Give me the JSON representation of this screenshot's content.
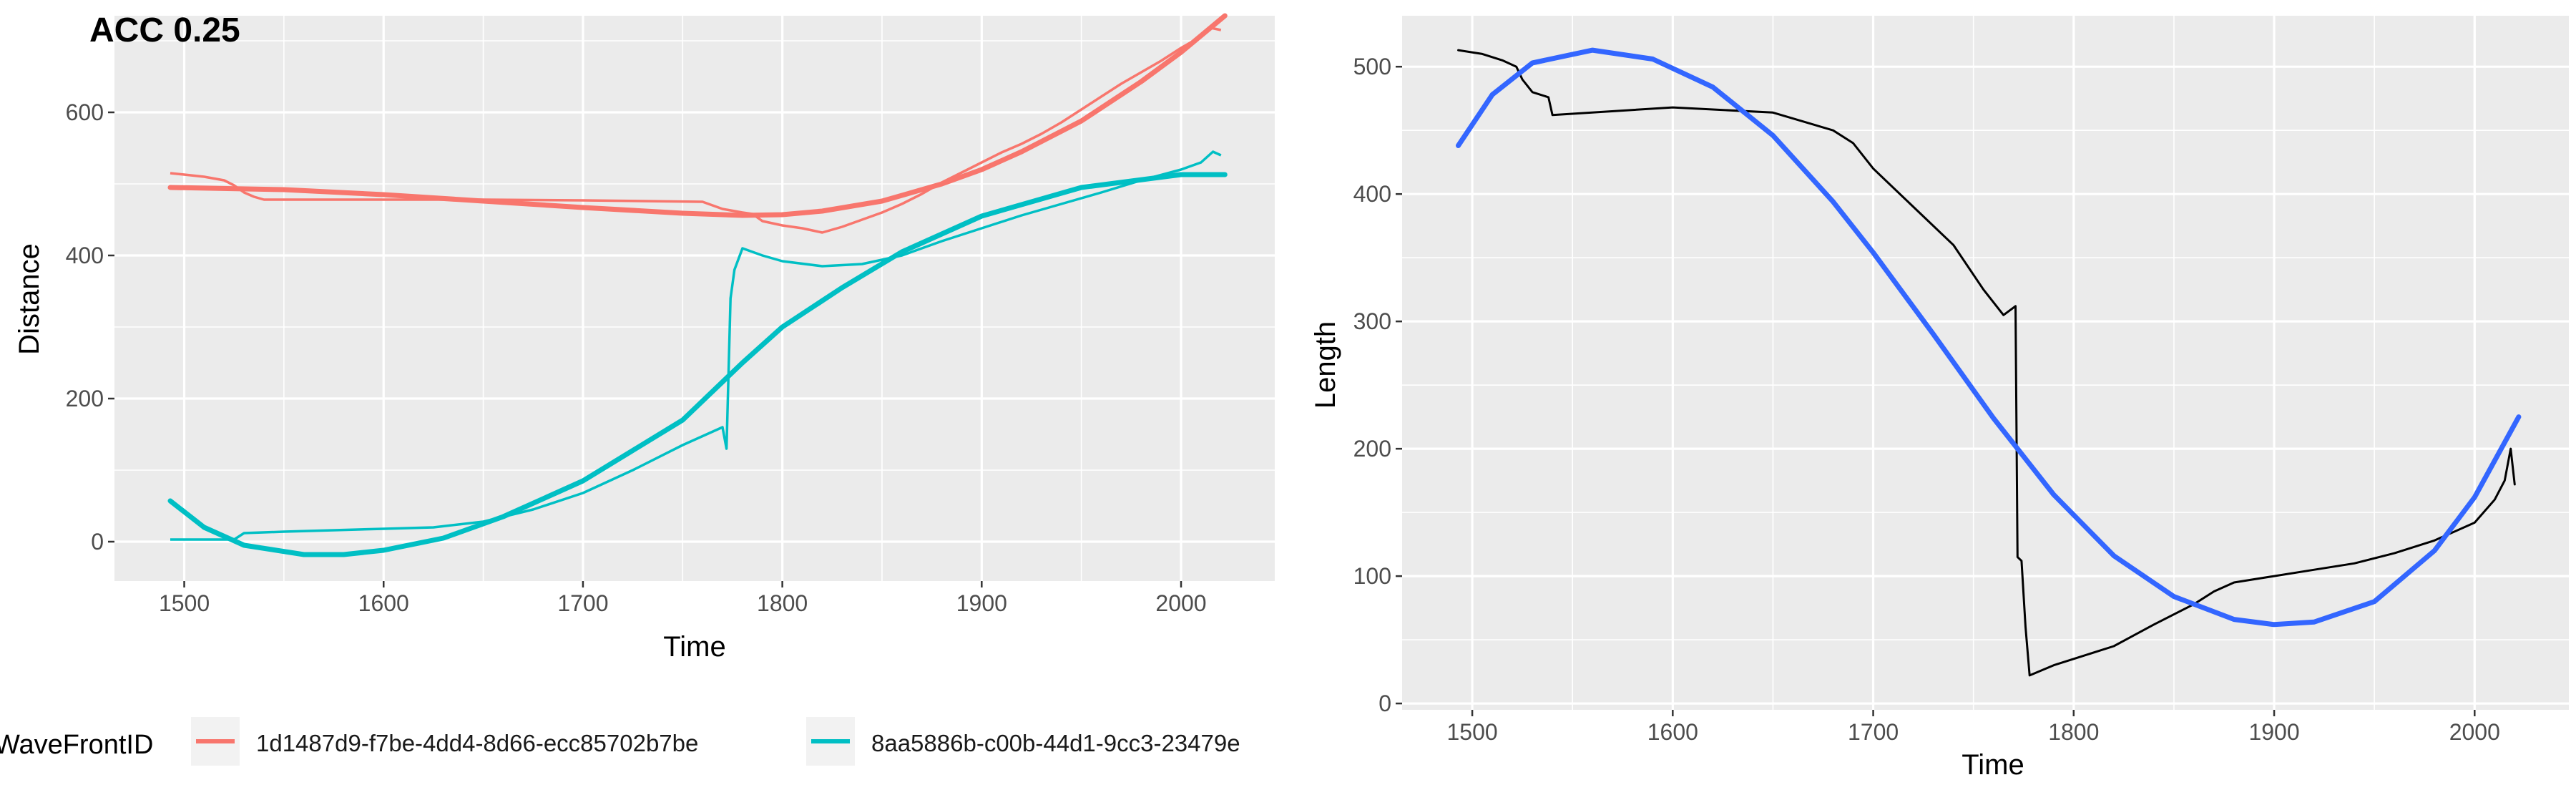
{
  "chart_data": [
    {
      "type": "line",
      "title": "ACC 0.25",
      "xlabel": "Time",
      "ylabel": "Distance",
      "xlim": [
        1465,
        2047
      ],
      "ylim": [
        -55,
        735
      ],
      "xticks": [
        1500,
        1600,
        1700,
        1800,
        1900,
        2000
      ],
      "yticks": [
        0,
        200,
        400,
        600
      ],
      "grid": true,
      "legend": {
        "title": "WaveFrontID",
        "position": "bottom",
        "entries": [
          {
            "label": "1d1487d9-f7be-4dd4-8d66-ecc85702b7be",
            "color": "#F8766D"
          },
          {
            "label": "8aa5886b-c00b-44d1-9cc3-23479e",
            "color": "#00BFC4"
          }
        ]
      },
      "series": [
        {
          "name": "1d1487d9-f7be-4dd4-8d66-ecc85702b7be",
          "color": "#F8766D",
          "points": [
            [
              1493,
              515
            ],
            [
              1500,
              513
            ],
            [
              1510,
              510
            ],
            [
              1520,
              505
            ],
            [
              1525,
              498
            ],
            [
              1530,
              488
            ],
            [
              1535,
              482
            ],
            [
              1540,
              478
            ],
            [
              1600,
              478
            ],
            [
              1650,
              478
            ],
            [
              1700,
              477
            ],
            [
              1760,
              475
            ],
            [
              1770,
              465
            ],
            [
              1780,
              460
            ],
            [
              1785,
              458
            ],
            [
              1790,
              448
            ],
            [
              1800,
              442
            ],
            [
              1810,
              438
            ],
            [
              1820,
              432
            ],
            [
              1830,
              440
            ],
            [
              1840,
              450
            ],
            [
              1850,
              460
            ],
            [
              1860,
              472
            ],
            [
              1870,
              486
            ],
            [
              1880,
              502
            ],
            [
              1890,
              516
            ],
            [
              1900,
              530
            ],
            [
              1910,
              544
            ],
            [
              1920,
              556
            ],
            [
              1930,
              570
            ],
            [
              1940,
              586
            ],
            [
              1950,
              604
            ],
            [
              1960,
              622
            ],
            [
              1970,
              640
            ],
            [
              1980,
              656
            ],
            [
              1990,
              672
            ],
            [
              2000,
              690
            ],
            [
              2010,
              706
            ],
            [
              2015,
              718
            ],
            [
              2020,
              715
            ]
          ],
          "smooth": [
            [
              1493,
              495
            ],
            [
              1550,
              492
            ],
            [
              1600,
              485
            ],
            [
              1650,
              476
            ],
            [
              1700,
              467
            ],
            [
              1750,
              459
            ],
            [
              1780,
              456
            ],
            [
              1800,
              457
            ],
            [
              1820,
              462
            ],
            [
              1850,
              476
            ],
            [
              1880,
              500
            ],
            [
              1900,
              520
            ],
            [
              1920,
              545
            ],
            [
              1950,
              588
            ],
            [
              1980,
              643
            ],
            [
              2000,
              684
            ],
            [
              2022,
              735
            ]
          ]
        },
        {
          "name": "8aa5886b-c00b-44d1-9cc3-23479e",
          "color": "#00BFC4",
          "points": [
            [
              1493,
              3
            ],
            [
              1525,
              3
            ],
            [
              1530,
              12
            ],
            [
              1550,
              14
            ],
            [
              1575,
              16
            ],
            [
              1600,
              18
            ],
            [
              1625,
              20
            ],
            [
              1650,
              28
            ],
            [
              1675,
              45
            ],
            [
              1700,
              68
            ],
            [
              1725,
              100
            ],
            [
              1750,
              135
            ],
            [
              1770,
              160
            ],
            [
              1772,
              130
            ],
            [
              1774,
              340
            ],
            [
              1776,
              380
            ],
            [
              1780,
              410
            ],
            [
              1790,
              400
            ],
            [
              1800,
              392
            ],
            [
              1820,
              385
            ],
            [
              1840,
              388
            ],
            [
              1860,
              400
            ],
            [
              1880,
              420
            ],
            [
              1900,
              438
            ],
            [
              1920,
              456
            ],
            [
              1940,
              472
            ],
            [
              1960,
              488
            ],
            [
              1980,
              505
            ],
            [
              2000,
              520
            ],
            [
              2010,
              530
            ],
            [
              2016,
              545
            ],
            [
              2020,
              540
            ]
          ],
          "smooth": [
            [
              1493,
              57
            ],
            [
              1510,
              20
            ],
            [
              1530,
              -5
            ],
            [
              1560,
              -18
            ],
            [
              1580,
              -18
            ],
            [
              1600,
              -12
            ],
            [
              1630,
              5
            ],
            [
              1660,
              35
            ],
            [
              1700,
              85
            ],
            [
              1750,
              170
            ],
            [
              1780,
              250
            ],
            [
              1800,
              300
            ],
            [
              1830,
              355
            ],
            [
              1860,
              405
            ],
            [
              1900,
              455
            ],
            [
              1950,
              495
            ],
            [
              2000,
              513
            ],
            [
              2022,
              513
            ]
          ]
        }
      ]
    },
    {
      "type": "line",
      "title": "",
      "xlabel": "Time",
      "ylabel": "Length",
      "xlim": [
        1465,
        2047
      ],
      "ylim": [
        -5,
        540
      ],
      "xticks": [
        1500,
        1600,
        1700,
        1800,
        1900,
        2000
      ],
      "yticks": [
        0,
        100,
        200,
        300,
        400,
        500
      ],
      "grid": true,
      "series": [
        {
          "color": "#000000",
          "points": [
            [
              1493,
              513
            ],
            [
              1505,
              510
            ],
            [
              1515,
              505
            ],
            [
              1522,
              500
            ],
            [
              1525,
              490
            ],
            [
              1530,
              480
            ],
            [
              1538,
              476
            ],
            [
              1540,
              462
            ],
            [
              1600,
              468
            ],
            [
              1650,
              464
            ],
            [
              1680,
              450
            ],
            [
              1690,
              440
            ],
            [
              1700,
              420
            ],
            [
              1720,
              390
            ],
            [
              1740,
              360
            ],
            [
              1755,
              325
            ],
            [
              1765,
              305
            ],
            [
              1771,
              312
            ],
            [
              1772,
              115
            ],
            [
              1774,
              112
            ],
            [
              1776,
              60
            ],
            [
              1778,
              22
            ],
            [
              1790,
              30
            ],
            [
              1800,
              35
            ],
            [
              1820,
              45
            ],
            [
              1840,
              62
            ],
            [
              1860,
              78
            ],
            [
              1870,
              88
            ],
            [
              1880,
              95
            ],
            [
              1900,
              100
            ],
            [
              1920,
              105
            ],
            [
              1940,
              110
            ],
            [
              1960,
              118
            ],
            [
              1980,
              128
            ],
            [
              2000,
              142
            ],
            [
              2010,
              160
            ],
            [
              2015,
              175
            ],
            [
              2018,
              200
            ],
            [
              2020,
              172
            ]
          ]
        },
        {
          "color": "#3366FF",
          "points": [
            [
              1493,
              438
            ],
            [
              1510,
              478
            ],
            [
              1530,
              503
            ],
            [
              1560,
              513
            ],
            [
              1590,
              506
            ],
            [
              1620,
              484
            ],
            [
              1650,
              446
            ],
            [
              1680,
              394
            ],
            [
              1700,
              354
            ],
            [
              1730,
              290
            ],
            [
              1760,
              224
            ],
            [
              1790,
              164
            ],
            [
              1820,
              116
            ],
            [
              1850,
              84
            ],
            [
              1880,
              66
            ],
            [
              1900,
              62
            ],
            [
              1920,
              64
            ],
            [
              1950,
              80
            ],
            [
              1980,
              120
            ],
            [
              2000,
              162
            ],
            [
              2022,
              225
            ]
          ]
        }
      ]
    }
  ]
}
